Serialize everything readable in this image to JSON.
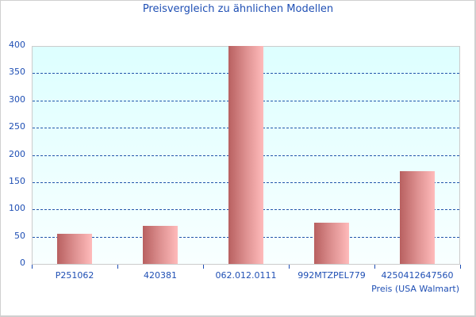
{
  "chart_data": {
    "type": "bar",
    "title": "Preisvergleich zu ähnlichen Modellen",
    "categories": [
      "P251062",
      "420381",
      "062.012.0111",
      "992MTZPEL779",
      "4250412647560"
    ],
    "series": [
      {
        "name": "Preis (USA Walmart)",
        "values": [
          55,
          70,
          400,
          76,
          170
        ]
      }
    ],
    "xlabel": "Preis (USA Walmart)",
    "ylabel": "",
    "ylim": [
      0,
      400
    ],
    "yticks": [
      0,
      50,
      100,
      150,
      200,
      250,
      300,
      350,
      400
    ],
    "grid": true,
    "legend": "none",
    "colors": {
      "text": "#1f4fb4",
      "grid": "#2255aa",
      "bar_gradient_start": "#b86060",
      "bar_gradient_end": "#ffbbbb",
      "plot_bg_top": "#ddffff",
      "plot_bg_bottom": "#f8ffff"
    }
  },
  "yaxis": {
    "ticks": [
      "0",
      "50",
      "100",
      "150",
      "200",
      "250",
      "300",
      "350",
      "400"
    ]
  }
}
